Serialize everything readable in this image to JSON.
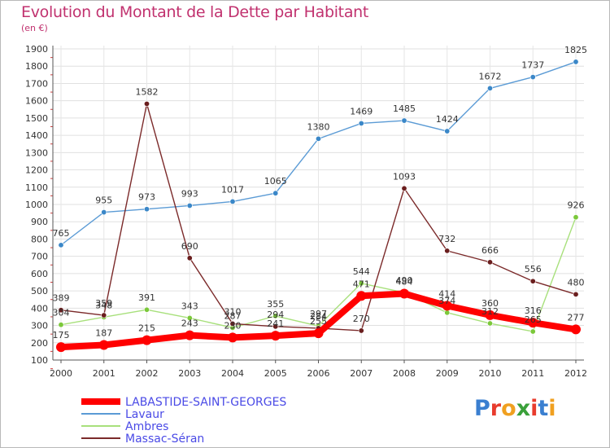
{
  "title": "Evolution du Montant de la Dette par Habitant",
  "subtitle": "(en €)",
  "logo": "Proxiti",
  "logo_colors": [
    "#3a7fd0",
    "#e83c2e",
    "#f0a020",
    "#3aa03a",
    "#e83c2e",
    "#3a7fd0",
    "#f0a020"
  ],
  "chart_data": {
    "type": "line",
    "title": "Evolution du Montant de la Dette par Habitant",
    "ylabel": "(en €)",
    "xlabel": "",
    "x": [
      "2000",
      "2001",
      "2002",
      "2003",
      "2004",
      "2005",
      "2006",
      "2007",
      "2008",
      "2009",
      "2010",
      "2011",
      "2012"
    ],
    "ylim": [
      100,
      1900
    ],
    "yticks": [
      100,
      200,
      300,
      400,
      500,
      600,
      700,
      800,
      900,
      1000,
      1100,
      1200,
      1300,
      1400,
      1500,
      1600,
      1700,
      1800,
      1900
    ],
    "grid": true,
    "legend_position": "bottom-left",
    "series": [
      {
        "name": "Lavaur",
        "color": "#5b9bd5",
        "marker_color": "#3a87c8",
        "values": [
          765,
          955,
          973,
          993,
          1017,
          1065,
          1380,
          1469,
          1485,
          1424,
          1672,
          1737,
          1825
        ],
        "labels": [
          "765",
          "955",
          "973",
          "993",
          "1017",
          "1065",
          "1380",
          "1469",
          "1485",
          "1424",
          "1672",
          "1737",
          "1825"
        ],
        "label_color": "#333333"
      },
      {
        "name": "Ambres",
        "color": "#a8e07c",
        "marker_color": "#7bc83a",
        "values": [
          304,
          348,
          391,
          343,
          287,
          355,
          297,
          544,
          490,
          374,
          312,
          265,
          926
        ],
        "labels": [
          "304",
          "348",
          "391",
          "343",
          "287",
          "355",
          "297",
          "544",
          "490",
          "374",
          "312",
          "265",
          "926"
        ],
        "label_color": "#333333"
      },
      {
        "name": "Massac-Séran",
        "color": "#7b2a2a",
        "marker_color": "#6a1e1e",
        "values": [
          389,
          359,
          1582,
          690,
          310,
          294,
          284,
          270,
          1093,
          732,
          666,
          556,
          480
        ],
        "labels": [
          "389",
          "359",
          "1582",
          "690",
          "310",
          "294",
          "284",
          "270",
          "1093",
          "732",
          "666",
          "556",
          "480"
        ],
        "label_color": "#333333"
      },
      {
        "name": "LABASTIDE-SAINT-GEORGES",
        "color": "#ff0000",
        "marker_color": "#ff0000",
        "values": [
          175,
          187,
          215,
          243,
          230,
          241,
          255,
          471,
          484,
          414,
          360,
          316,
          277
        ],
        "labels": [
          "175",
          "187",
          "215",
          "243",
          "230",
          "241",
          "255",
          "471",
          "484",
          "414",
          "360",
          "316",
          "277"
        ],
        "label_color": "#333333",
        "emphasis": true
      }
    ],
    "legend": [
      {
        "name": "LABASTIDE-SAINT-GEORGES",
        "color": "#ff0000",
        "thick": true
      },
      {
        "name": "Lavaur",
        "color": "#5b9bd5",
        "thick": false
      },
      {
        "name": "Ambres",
        "color": "#a8e07c",
        "thick": false
      },
      {
        "name": "Massac-Séran",
        "color": "#7b2a2a",
        "thick": false
      }
    ],
    "legend_text_color": "#4a4ae6"
  }
}
